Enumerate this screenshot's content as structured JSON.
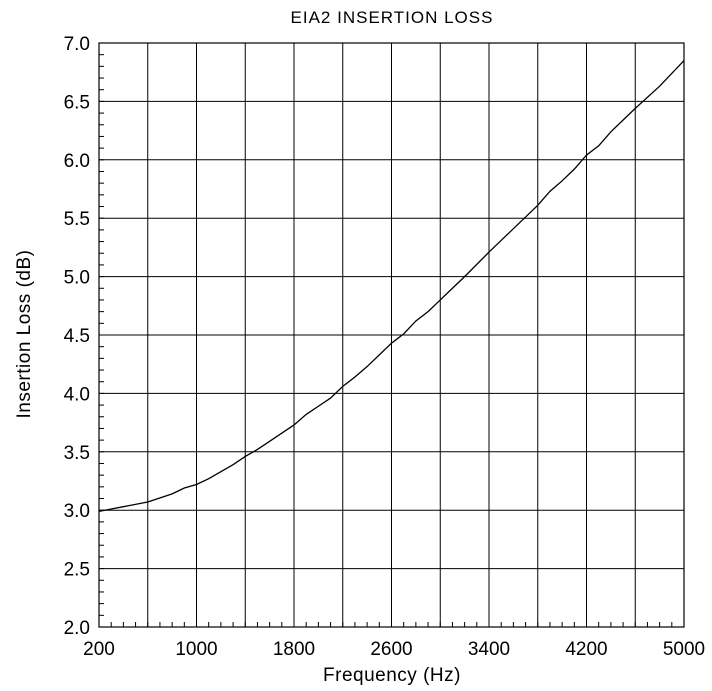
{
  "chart_data": {
    "type": "line",
    "title": "EIA2 INSERTION LOSS",
    "xlabel": "Frequency (Hz)",
    "ylabel": "Insertion Loss (dB)",
    "xlim": [
      200,
      5000
    ],
    "ylim": [
      2.0,
      7.0
    ],
    "x_ticks": [
      200,
      1000,
      1800,
      2600,
      3400,
      4200,
      5000
    ],
    "x_tick_labels": [
      "200",
      "1000",
      "1800",
      "2600",
      "3400",
      "4200",
      "5000"
    ],
    "x_gridlines": [
      200,
      600,
      1000,
      1400,
      1800,
      2200,
      2600,
      3000,
      3400,
      3800,
      4200,
      4600,
      5000
    ],
    "y_ticks": [
      2.0,
      2.5,
      3.0,
      3.5,
      4.0,
      4.5,
      5.0,
      5.5,
      6.0,
      6.5,
      7.0
    ],
    "y_tick_labels": [
      "2.0",
      "2.5",
      "3.0",
      "3.5",
      "4.0",
      "4.5",
      "5.0",
      "5.5",
      "6.0",
      "6.5",
      "7.0"
    ],
    "grid": true,
    "line_color": "#000000",
    "series": [
      {
        "x": [
          200,
          400,
          600,
          800,
          900,
          1000,
          1100,
          1200,
          1300,
          1400,
          1500,
          1600,
          1800,
          1900,
          2000,
          2100,
          2200,
          2300,
          2400,
          2500,
          2600,
          2700,
          2800,
          2900,
          3000,
          3100,
          3200,
          3400,
          3600,
          3800,
          3900,
          4000,
          4100,
          4200,
          4300,
          4400,
          4600,
          4800,
          5000
        ],
        "y": [
          2.99,
          3.03,
          3.07,
          3.14,
          3.19,
          3.22,
          3.27,
          3.33,
          3.39,
          3.46,
          3.52,
          3.59,
          3.73,
          3.82,
          3.89,
          3.96,
          4.06,
          4.14,
          4.23,
          4.33,
          4.43,
          4.51,
          4.62,
          4.7,
          4.8,
          4.9,
          5.0,
          5.21,
          5.41,
          5.61,
          5.73,
          5.82,
          5.92,
          6.04,
          6.12,
          6.24,
          6.44,
          6.63,
          6.85
        ]
      }
    ]
  }
}
